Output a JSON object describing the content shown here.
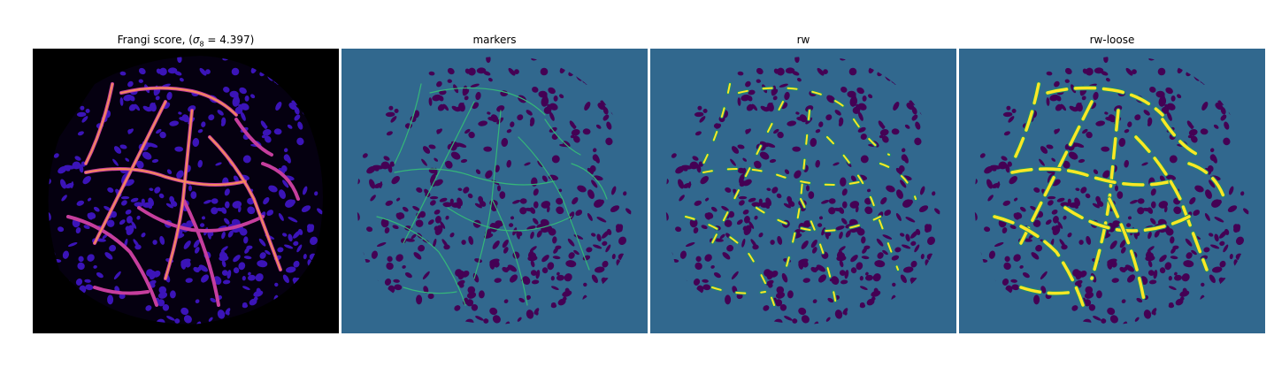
{
  "panels": [
    {
      "id": "frangi",
      "title_prefix": "Frangi score, (",
      "title_sigma": "σ",
      "title_sub": "8",
      "title_suffix": " = 4.397)",
      "background": "#000000",
      "cell_color": "#3b14b8",
      "vessel_color": "#f48a5a",
      "vessel_alt_color": "#c63e9d"
    },
    {
      "id": "markers",
      "title": "markers",
      "background": "#31688e",
      "cell_color": "#440154",
      "vessel_color": "#35b779"
    },
    {
      "id": "rw",
      "title": "rw",
      "background": "#31688e",
      "cell_color": "#440154",
      "vessel_color": "#fde725"
    },
    {
      "id": "rw-loose",
      "title": "rw-loose",
      "background": "#31688e",
      "cell_color": "#440154",
      "vessel_color": "#fde725"
    }
  ]
}
